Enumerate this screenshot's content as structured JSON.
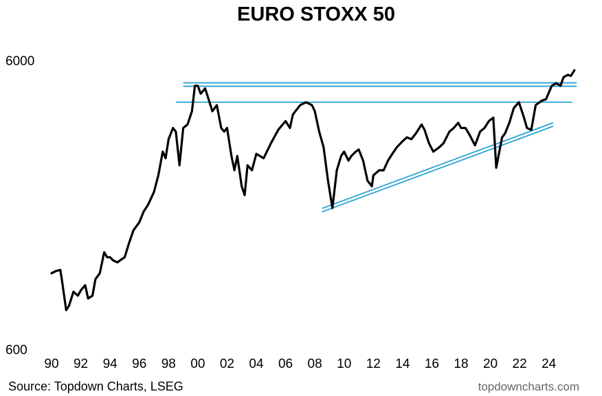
{
  "chart_data": {
    "type": "line",
    "title": "EURO STOXX 50",
    "xlabel": "",
    "ylabel": "",
    "yscale": "log",
    "ylim": [
      600,
      6000
    ],
    "xlim": [
      1990,
      2025.8
    ],
    "ytick_labels": [
      "6000",
      "600"
    ],
    "ytick_values": [
      6000,
      600
    ],
    "xtick_labels": [
      "90",
      "92",
      "94",
      "96",
      "98",
      "00",
      "02",
      "04",
      "06",
      "08",
      "10",
      "12",
      "14",
      "16",
      "18",
      "20",
      "22",
      "24"
    ],
    "xtick_values": [
      1990,
      1992,
      1994,
      1996,
      1998,
      2000,
      2002,
      2004,
      2006,
      2008,
      2010,
      2012,
      2014,
      2016,
      2018,
      2020,
      2022,
      2024
    ],
    "grid": false,
    "legend": "none",
    "series": [
      {
        "color": "#000000",
        "x": [
          1990.0,
          1990.3,
          1990.6,
          1990.7,
          1991.0,
          1991.2,
          1991.5,
          1991.8,
          1992.0,
          1992.3,
          1992.5,
          1992.8,
          1993.0,
          1993.3,
          1993.6,
          1993.8,
          1994.0,
          1994.2,
          1994.5,
          1994.7,
          1995.0,
          1995.3,
          1995.6,
          1996.0,
          1996.3,
          1996.6,
          1997.0,
          1997.3,
          1997.6,
          1997.8,
          1998.0,
          1998.3,
          1998.5,
          1998.75,
          1999.0,
          1999.3,
          1999.6,
          1999.8,
          2000.0,
          2000.2,
          2000.5,
          2000.8,
          2001.0,
          2001.3,
          2001.6,
          2001.8,
          2002.0,
          2002.3,
          2002.5,
          2002.7,
          2003.0,
          2003.2,
          2003.4,
          2003.7,
          2004.0,
          2004.5,
          2005.0,
          2005.5,
          2006.0,
          2006.3,
          2006.5,
          2007.0,
          2007.4,
          2007.8,
          2008.0,
          2008.3,
          2008.6,
          2008.9,
          2009.2,
          2009.5,
          2009.8,
          2010.0,
          2010.3,
          2010.5,
          2010.8,
          2011.0,
          2011.3,
          2011.6,
          2011.9,
          2012.0,
          2012.4,
          2012.7,
          2013.0,
          2013.3,
          2013.6,
          2014.0,
          2014.3,
          2014.6,
          2014.9,
          2015.3,
          2015.5,
          2015.8,
          2016.1,
          2016.5,
          2016.8,
          2017.2,
          2017.5,
          2017.8,
          2018.0,
          2018.3,
          2018.6,
          2018.95,
          2019.3,
          2019.6,
          2019.9,
          2020.2,
          2020.4,
          2020.8,
          2021.0,
          2021.3,
          2021.6,
          2021.95,
          2022.3,
          2022.5,
          2022.8,
          2023.1,
          2023.5,
          2023.8,
          2024.2,
          2024.5,
          2024.8,
          2025.0,
          2025.3,
          2025.5,
          2025.75
        ],
        "y": [
          1100,
          1120,
          1130,
          1050,
          820,
          850,
          950,
          920,
          960,
          1000,
          900,
          920,
          1050,
          1100,
          1300,
          1250,
          1250,
          1220,
          1200,
          1220,
          1250,
          1400,
          1550,
          1650,
          1800,
          1900,
          2100,
          2400,
          2900,
          2750,
          3200,
          3500,
          3400,
          2600,
          3500,
          3600,
          4000,
          4900,
          4900,
          4600,
          4800,
          4300,
          4000,
          4200,
          3500,
          3400,
          3500,
          2800,
          2500,
          2800,
          2200,
          2050,
          2600,
          2500,
          2850,
          2750,
          3100,
          3450,
          3700,
          3500,
          3900,
          4200,
          4300,
          4200,
          4000,
          3400,
          3000,
          2300,
          1850,
          2500,
          2800,
          2900,
          2700,
          2800,
          2900,
          2950,
          2700,
          2300,
          2200,
          2400,
          2500,
          2500,
          2700,
          2850,
          3000,
          3150,
          3250,
          3200,
          3350,
          3600,
          3450,
          3100,
          2900,
          3000,
          3100,
          3400,
          3500,
          3650,
          3500,
          3500,
          3300,
          3050,
          3400,
          3500,
          3700,
          3800,
          2550,
          3250,
          3350,
          3650,
          4100,
          4300,
          3800,
          3500,
          3450,
          4200,
          4350,
          4400,
          4900,
          5000,
          4900,
          5250,
          5350,
          5300,
          5550
        ],
        "values": [
          1100,
          1120,
          1130,
          1050,
          820,
          850,
          950,
          920,
          960,
          1000,
          900,
          920,
          1050,
          1100,
          1300,
          1250,
          1250,
          1220,
          1200,
          1220,
          1250,
          1400,
          1550,
          1650,
          1800,
          1900,
          2100,
          2400,
          2900,
          2750,
          3200,
          3500,
          3400,
          2600,
          3500,
          3600,
          4000,
          4900,
          4900,
          4600,
          4800,
          4300,
          4000,
          4200,
          3500,
          3400,
          3500,
          2800,
          2500,
          2800,
          2200,
          2050,
          2600,
          2500,
          2850,
          2750,
          3100,
          3450,
          3700,
          3500,
          3900,
          4200,
          4300,
          4200,
          4000,
          3400,
          3000,
          2300,
          1850,
          2500,
          2800,
          2900,
          2700,
          2800,
          2900,
          2950,
          2700,
          2300,
          2200,
          2400,
          2500,
          2500,
          2700,
          2850,
          3000,
          3150,
          3250,
          3200,
          3350,
          3600,
          3450,
          3100,
          2900,
          3000,
          3100,
          3400,
          3500,
          3650,
          3500,
          3500,
          3300,
          3050,
          3400,
          3500,
          3700,
          3800,
          2550,
          3250,
          3350,
          3650,
          4100,
          4300,
          3800,
          3500,
          3450,
          4200,
          4350,
          4400,
          4900,
          5000,
          4900,
          5250,
          5350,
          5300,
          5550
        ]
      }
    ],
    "reference_lines": [
      {
        "type": "horizontal-double",
        "color": "#29a3d6",
        "x": [
          1999.0,
          2025.9
        ],
        "y": 4950
      },
      {
        "type": "horizontal",
        "color": "#29a3d6",
        "x": [
          1998.5,
          2025.6
        ],
        "y": 4300
      },
      {
        "type": "trend-double",
        "color": "#29a3d6",
        "x": [
          2008.5,
          2024.3
        ],
        "y": [
          1820,
          3600
        ]
      }
    ]
  },
  "footer": {
    "source": "Source: Topdown Charts, LSEG",
    "brand": "topdowncharts.com"
  }
}
